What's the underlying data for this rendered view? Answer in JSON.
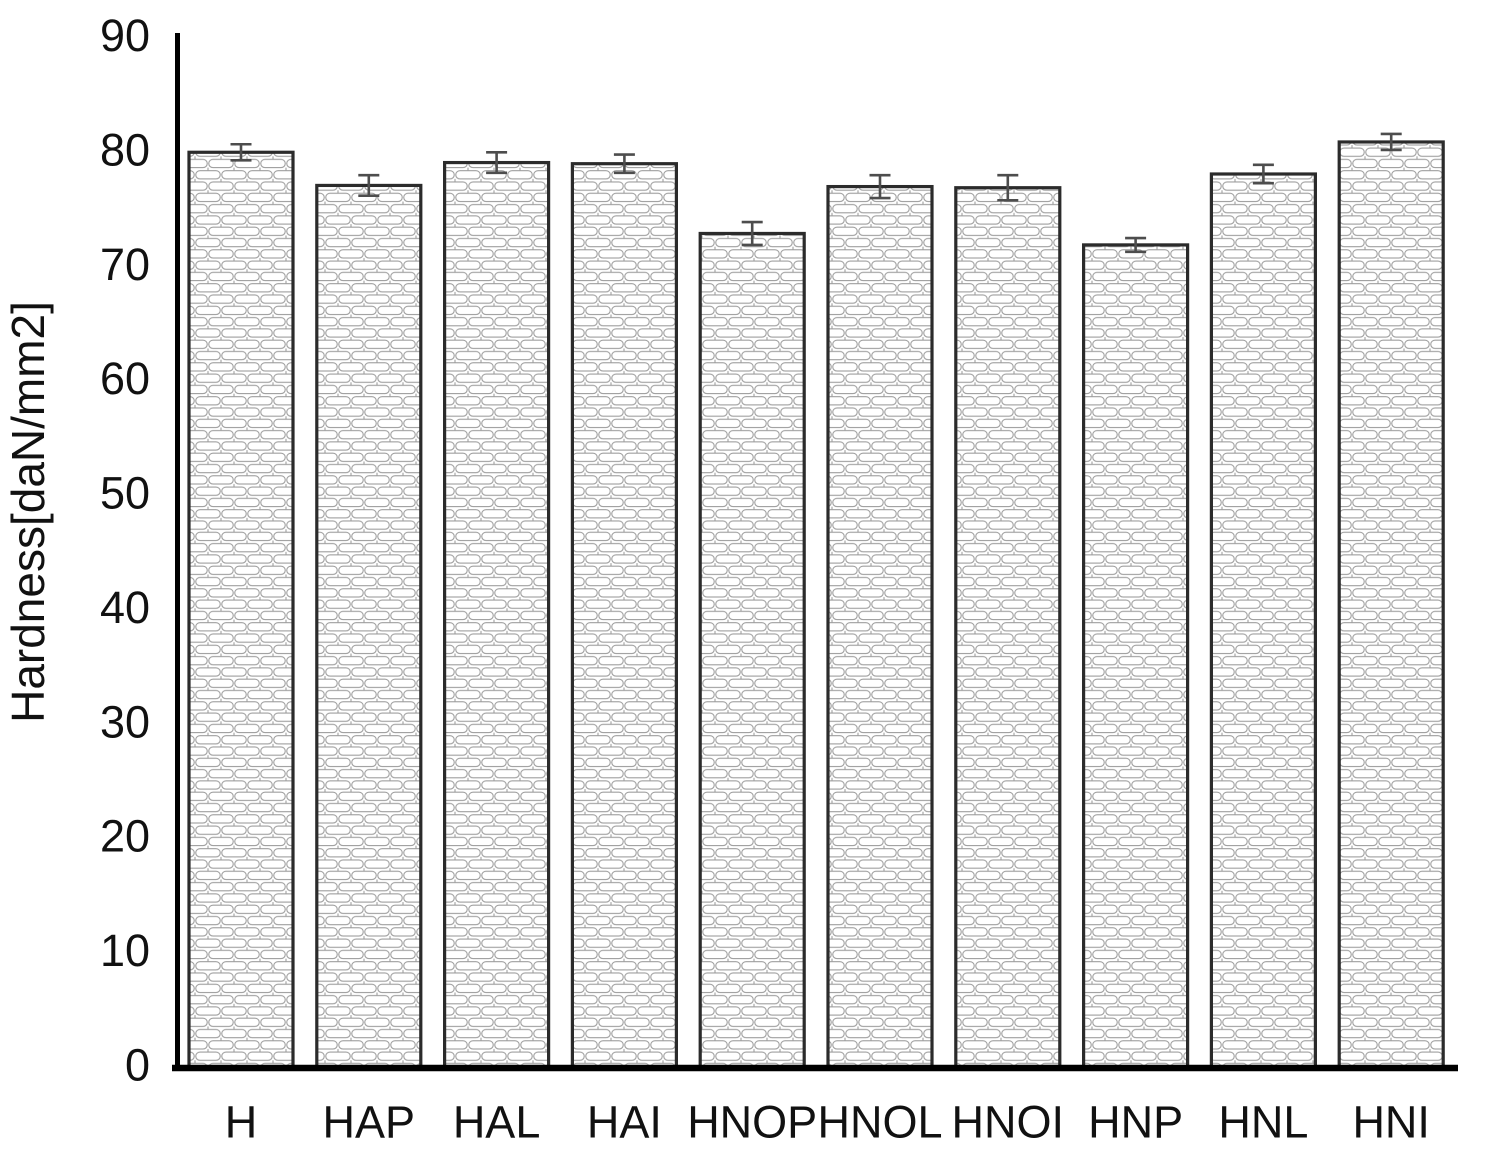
{
  "figure": {
    "background_color": "#ffffff",
    "title": ""
  },
  "chart_data": {
    "type": "bar",
    "title": "",
    "categories": [
      "H",
      "HAP",
      "HAL",
      "HAI",
      "HNOP",
      "HNOL",
      "HNOI",
      "HNP",
      "HNL",
      "HNI"
    ],
    "values": [
      79.8,
      76.9,
      78.9,
      78.8,
      72.7,
      76.8,
      76.7,
      71.7,
      77.9,
      80.7
    ],
    "error_bars": [
      0.7,
      0.9,
      0.9,
      0.8,
      1.0,
      1.0,
      1.1,
      0.6,
      0.8,
      0.7
    ],
    "xlabel": "",
    "ylabel": "Hardness[daN/mm2]",
    "ylim": [
      0,
      90
    ],
    "yticks": [
      0,
      10,
      20,
      30,
      40,
      50,
      60,
      70,
      80,
      90
    ],
    "ytick_interval": 10,
    "grid": false,
    "legend": "none",
    "bar_style": {
      "fill": "white with light-gray rounded-brick hatch pattern",
      "border_color": "#2b2b2b",
      "pattern_line_color": "#9e9e9e"
    },
    "error_bar_color": "#4d4d4d",
    "axis_color": "#000000"
  }
}
